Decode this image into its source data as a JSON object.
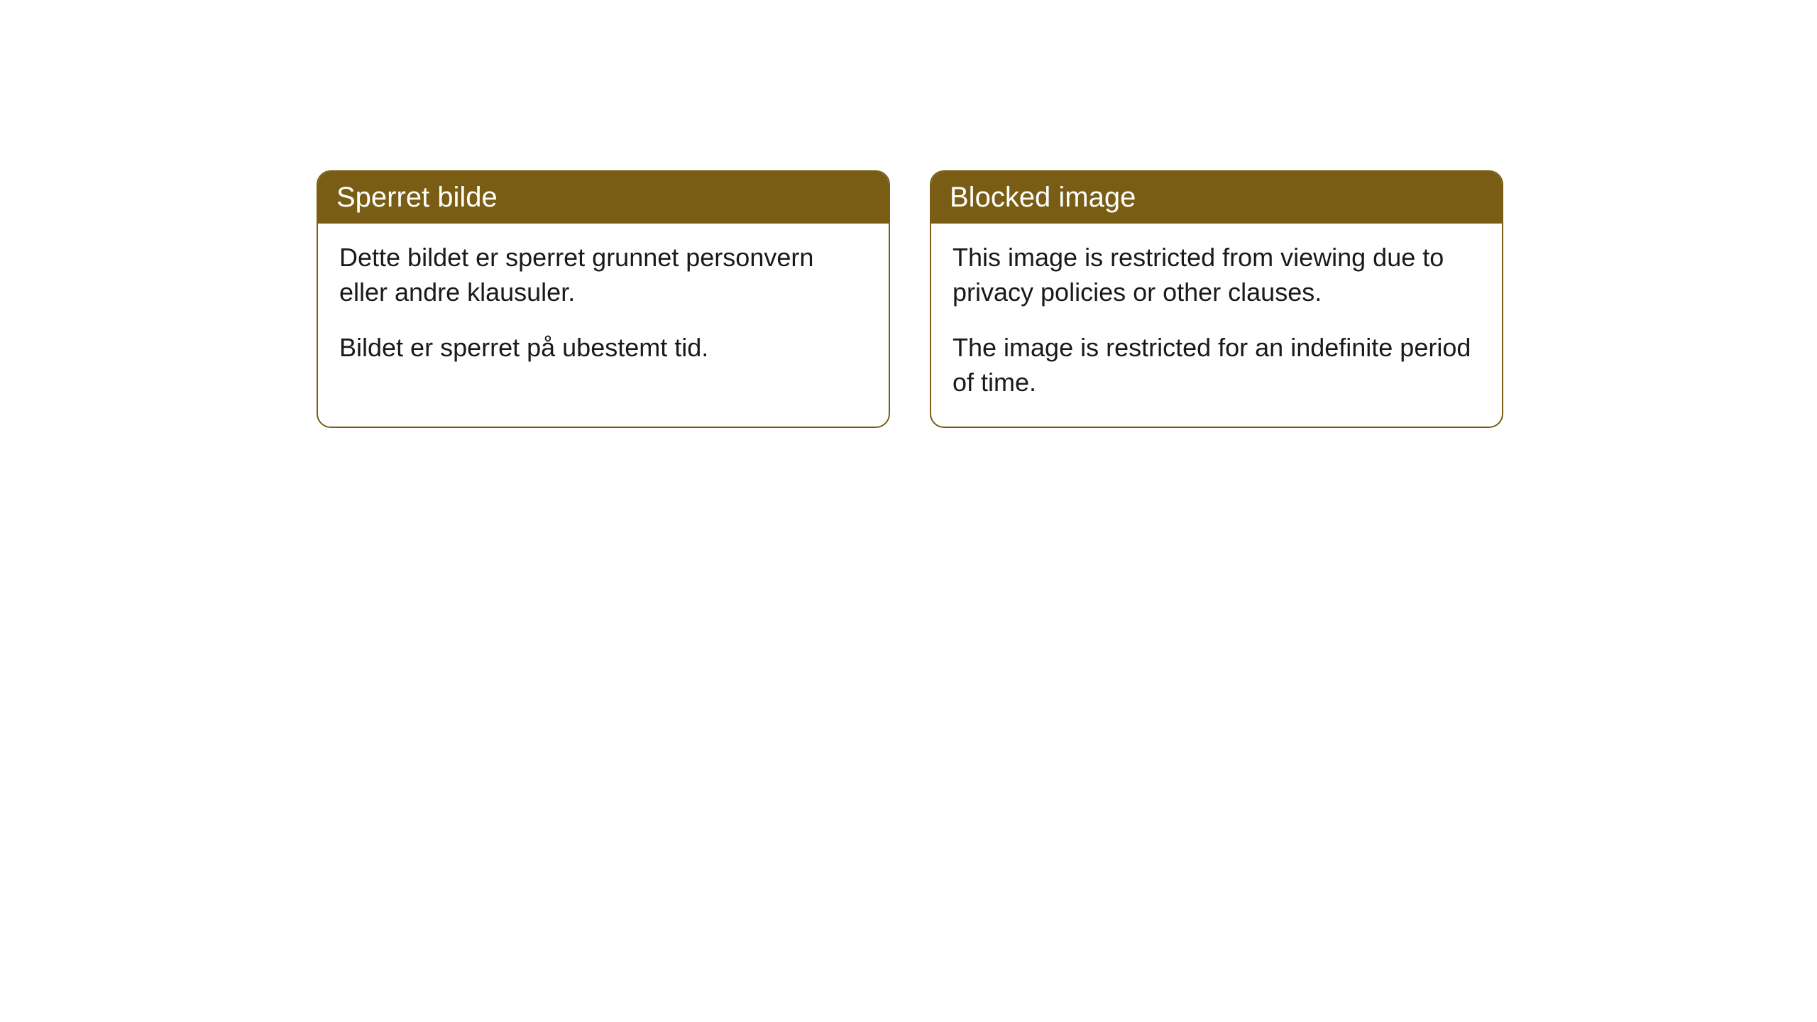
{
  "cards": [
    {
      "title": "Sperret bilde",
      "paragraph1": "Dette bildet er sperret grunnet personvern eller andre klausuler.",
      "paragraph2": "Bildet er sperret på ubestemt tid."
    },
    {
      "title": "Blocked image",
      "paragraph1": "This image is restricted from viewing due to privacy policies or other clauses.",
      "paragraph2": "The image is restricted for an indefinite period of time."
    }
  ],
  "styling": {
    "header_background": "#7a5d14",
    "header_text_color": "#ffffff",
    "card_border_color": "#7a5d14",
    "card_background": "#ffffff",
    "body_text_color": "#1a1a1a",
    "page_background": "#ffffff",
    "border_radius": 20,
    "title_fontsize": 40,
    "body_fontsize": 36
  }
}
